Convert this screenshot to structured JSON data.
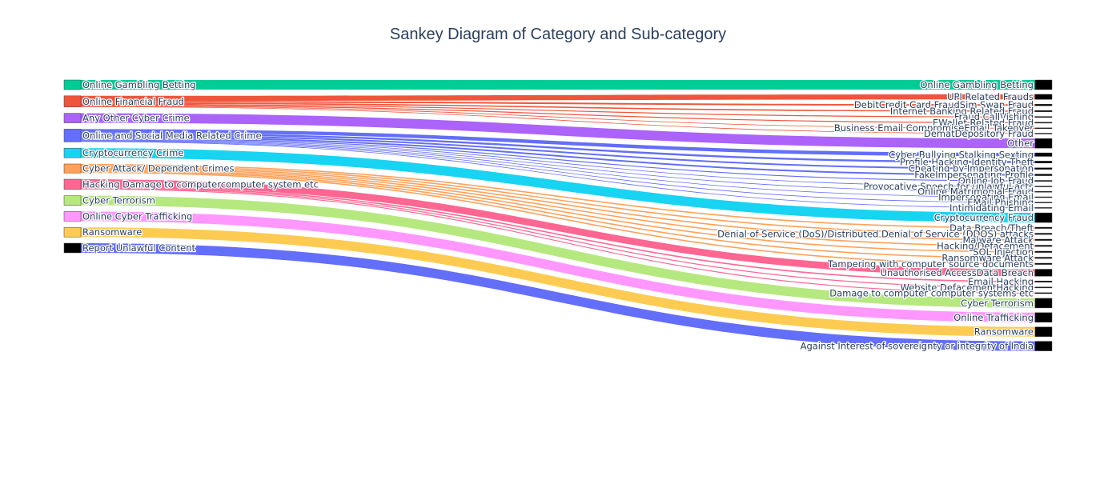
{
  "chart_data": {
    "type": "sankey",
    "title": "Sankey Diagram of Category and Sub-category",
    "categories": [
      {
        "name": "Online Gambling  Betting",
        "color": "#00cc96"
      },
      {
        "name": "Online Financial Fraud",
        "color": "#ef553b"
      },
      {
        "name": "Any Other Cyber Crime",
        "color": "#ab63fa"
      },
      {
        "name": "Online and Social Media Related Crime",
        "color": "#636efa"
      },
      {
        "name": "Cryptocurrency Crime",
        "color": "#19d3f3"
      },
      {
        "name": "Cyber Attack/ Dependent Crimes",
        "color": "#ffa15a"
      },
      {
        "name": "Hacking  Damage to computercomputer system etc",
        "color": "#ff6692"
      },
      {
        "name": "Cyber Terrorism",
        "color": "#b6e880"
      },
      {
        "name": "Online Cyber Trafficking",
        "color": "#ff97ff"
      },
      {
        "name": "Ransomware",
        "color": "#fecb52"
      },
      {
        "name": "Report Unlawful Content",
        "color": "#000000"
      }
    ],
    "subcategories": [
      {
        "name": "Online Gambling  Betting",
        "category": "Online Gambling  Betting",
        "value": 3.0
      },
      {
        "name": "UPI Related Frauds",
        "category": "Online Financial Fraud",
        "value": 1.6
      },
      {
        "name": "DebitCredit Card FraudSim Swap Fraud",
        "category": "Online Financial Fraud",
        "value": 0.5
      },
      {
        "name": "Internet Banking Related Fraud",
        "category": "Online Financial Fraud",
        "value": 0.4
      },
      {
        "name": "Fraud CallVishing",
        "category": "Online Financial Fraud",
        "value": 0.3
      },
      {
        "name": "EWallet Related Fraud",
        "category": "Online Financial Fraud",
        "value": 0.3
      },
      {
        "name": "Business Email CompromiseEmail Takeover",
        "category": "Online Financial Fraud",
        "value": 0.2
      },
      {
        "name": "DematDepository Fraud",
        "category": "Online Financial Fraud",
        "value": 0.2
      },
      {
        "name": "Other",
        "category": "Any Other Cyber Crime",
        "value": 3.0
      },
      {
        "name": "Cyber Bullying  Stalking  Sexting",
        "category": "Online and Social Media Related Crime",
        "value": 1.1
      },
      {
        "name": "Profile Hacking Identity Theft",
        "category": "Online and Social Media Related Crime",
        "value": 0.6
      },
      {
        "name": "Cheating by Impersonation",
        "category": "Online and Social Media Related Crime",
        "value": 0.5
      },
      {
        "name": "FakeImpersonating Profile",
        "category": "Online and Social Media Related Crime",
        "value": 0.5
      },
      {
        "name": "Online Job Fraud",
        "category": "Online and Social Media Related Crime",
        "value": 0.3
      },
      {
        "name": "Provocative Speech for unlawful acts",
        "category": "Online and Social Media Related Crime",
        "value": 0.2
      },
      {
        "name": "Online Matrimonial Fraud",
        "category": "Online and Social Media Related Crime",
        "value": 0.2
      },
      {
        "name": "Impersonating Email",
        "category": "Online and Social Media Related Crime",
        "value": 0.2
      },
      {
        "name": "EMail Phishing",
        "category": "Online and Social Media Related Crime",
        "value": 0.2
      },
      {
        "name": "Intimidating Email",
        "category": "Online and Social Media Related Crime",
        "value": 0.2
      },
      {
        "name": "Cryptocurrency Fraud",
        "category": "Cryptocurrency Crime",
        "value": 3.0
      },
      {
        "name": "Data Breach/Theft",
        "category": "Cyber Attack/ Dependent Crimes",
        "value": 0.4
      },
      {
        "name": "Denial of Service (DoS)/Distributed Denial of Service (DDOS) attacks",
        "category": "Cyber Attack/ Dependent Crimes",
        "value": 0.4
      },
      {
        "name": "Malware Attack",
        "category": "Cyber Attack/ Dependent Crimes",
        "value": 0.4
      },
      {
        "name": "Hacking/Defacement",
        "category": "Cyber Attack/ Dependent Crimes",
        "value": 0.4
      },
      {
        "name": "SQL Injection",
        "category": "Cyber Attack/ Dependent Crimes",
        "value": 0.4
      },
      {
        "name": "Ransomware Attack",
        "category": "Cyber Attack/ Dependent Crimes",
        "value": 0.4
      },
      {
        "name": "Tampering with computer source documents",
        "category": "Cyber Attack/ Dependent Crimes",
        "value": 0.4
      },
      {
        "name": "Unauthorised AccessData Breach",
        "category": "Hacking  Damage to computercomputer system etc",
        "value": 2.2
      },
      {
        "name": "Email Hacking",
        "category": "Hacking  Damage to computercomputer system etc",
        "value": 0.4
      },
      {
        "name": "Website DefacementHacking",
        "category": "Hacking  Damage to computercomputer system etc",
        "value": 0.3
      },
      {
        "name": "Damage to computer computer systems etc",
        "category": "Hacking  Damage to computercomputer system etc",
        "value": 0.3
      },
      {
        "name": "Cyber Terrorism",
        "category": "Cyber Terrorism",
        "value": 3.0
      },
      {
        "name": "Online Trafficking",
        "category": "Online Cyber Trafficking",
        "value": 3.0
      },
      {
        "name": "Ransomware",
        "category": "Ransomware",
        "value": 3.0
      },
      {
        "name": "Against Interest of sovereignty or integrity of India",
        "category": "Report Unlawful Content",
        "value": 3.0
      }
    ],
    "link_color": "same as source category",
    "node_color_right": "#000000"
  }
}
